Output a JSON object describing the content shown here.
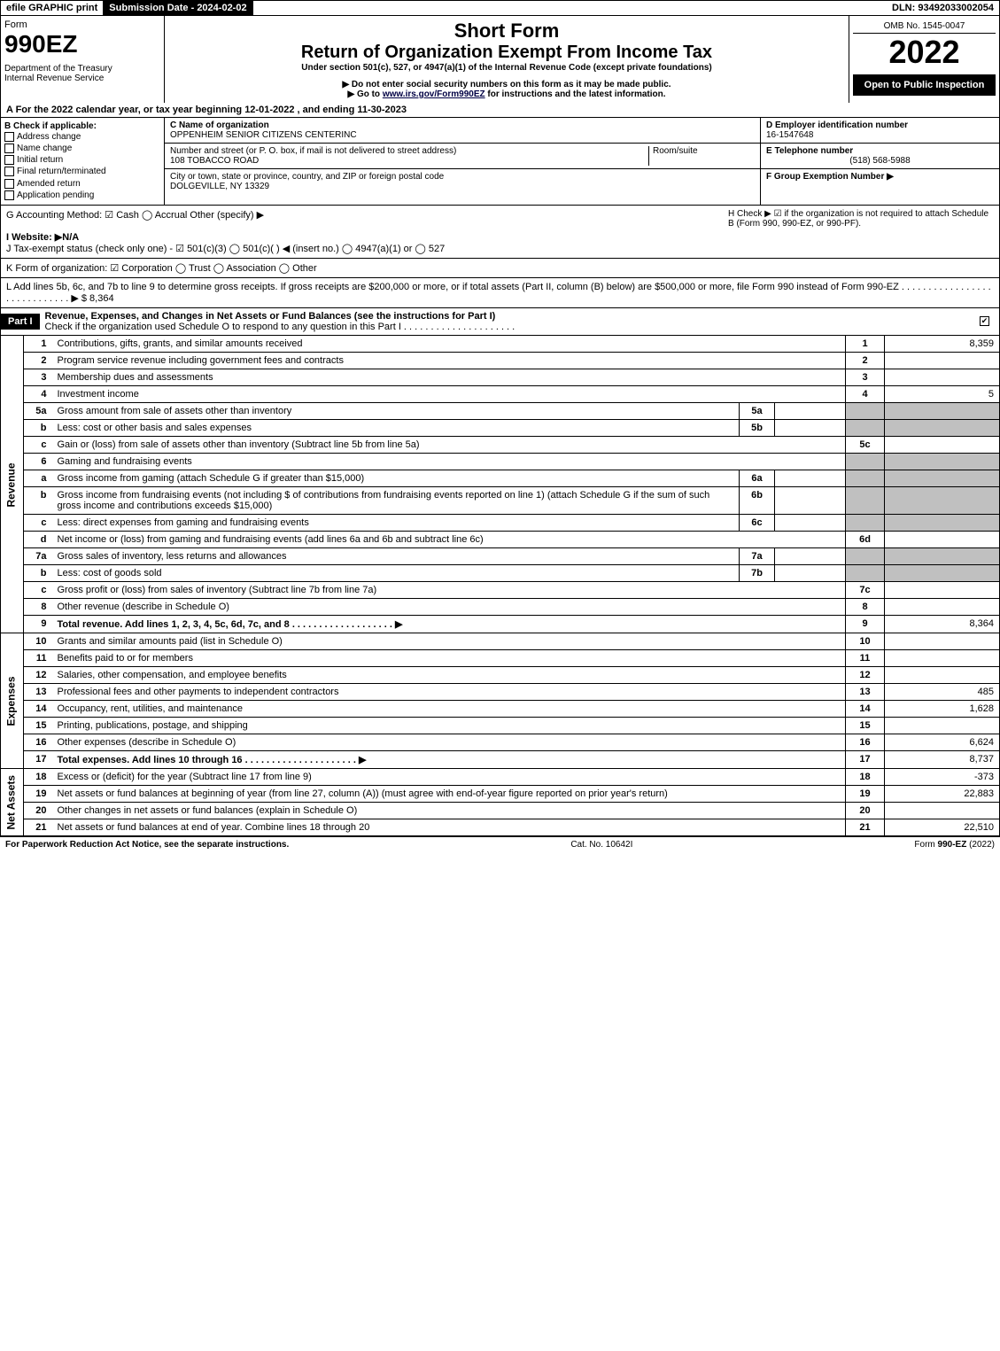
{
  "top": {
    "efile": "efile GRAPHIC print",
    "subdate": "Submission Date - 2024-02-02",
    "dln": "DLN: 93492033002054"
  },
  "header": {
    "form_word": "Form",
    "form_num": "990EZ",
    "dept": "Department of the Treasury\nInternal Revenue Service",
    "short": "Short Form",
    "title": "Return of Organization Exempt From Income Tax",
    "sub": "Under section 501(c), 527, or 4947(a)(1) of the Internal Revenue Code (except private foundations)",
    "warn": "▶ Do not enter social security numbers on this form as it may be made public.",
    "go": "▶ Go to www.irs.gov/Form990EZ for instructions and the latest information.",
    "omb": "OMB No. 1545-0047",
    "year": "2022",
    "open": "Open to Public Inspection"
  },
  "A": "A  For the 2022 calendar year, or tax year beginning 12-01-2022 , and ending 11-30-2023",
  "B": {
    "title": "B  Check if applicable:",
    "items": [
      "Address change",
      "Name change",
      "Initial return",
      "Final return/terminated",
      "Amended return",
      "Application pending"
    ]
  },
  "C": {
    "name_lbl": "C Name of organization",
    "name": "OPPENHEIM SENIOR CITIZENS CENTERINC",
    "street_lbl": "Number and street (or P. O. box, if mail is not delivered to street address)",
    "street": "108 TOBACCO ROAD",
    "room_lbl": "Room/suite",
    "city_lbl": "City or town, state or province, country, and ZIP or foreign postal code",
    "city": "DOLGEVILLE, NY  13329"
  },
  "D": {
    "lbl": "D Employer identification number",
    "val": "16-1547648"
  },
  "E": {
    "lbl": "E Telephone number",
    "val": "(518) 568-5988"
  },
  "F": {
    "lbl": "F Group Exemption Number  ▶"
  },
  "G": "G Accounting Method:  ☑ Cash  ◯ Accrual   Other (specify) ▶",
  "H": "H   Check ▶ ☑ if the organization is not required to attach Schedule B (Form 990, 990-EZ, or 990-PF).",
  "I": "I Website: ▶N/A",
  "J": "J Tax-exempt status (check only one) - ☑ 501(c)(3) ◯ 501(c)(  ) ◀ (insert no.) ◯ 4947(a)(1) or ◯ 527",
  "K": "K Form of organization:  ☑ Corporation  ◯ Trust  ◯ Association  ◯ Other",
  "L": "L Add lines 5b, 6c, and 7b to line 9 to determine gross receipts. If gross receipts are $200,000 or more, or if total assets (Part II, column (B) below) are $500,000 or more, file Form 990 instead of Form 990-EZ . . . . . . . . . . . . . . . . . . . . . . . . . . . . . ▶ $ 8,364",
  "part1": {
    "label": "Part I",
    "title": "Revenue, Expenses, and Changes in Net Assets or Fund Balances (see the instructions for Part I)",
    "sub": "Check if the organization used Schedule O to respond to any question in this Part I . . . . . . . . . . . . . . . . . . . . .",
    "checked": true
  },
  "sides": {
    "rev": "Revenue",
    "exp": "Expenses",
    "net": "Net Assets"
  },
  "lines": [
    {
      "n": "1",
      "t": "Contributions, gifts, grants, and similar amounts received",
      "box": "1",
      "val": "8,359"
    },
    {
      "n": "2",
      "t": "Program service revenue including government fees and contracts",
      "box": "2",
      "val": ""
    },
    {
      "n": "3",
      "t": "Membership dues and assessments",
      "box": "3",
      "val": ""
    },
    {
      "n": "4",
      "t": "Investment income",
      "box": "4",
      "val": "5"
    },
    {
      "n": "5a",
      "t": "Gross amount from sale of assets other than inventory",
      "sub": "5a",
      "grey": true
    },
    {
      "n": "b",
      "t": "Less: cost or other basis and sales expenses",
      "sub": "5b",
      "grey": true
    },
    {
      "n": "c",
      "t": "Gain or (loss) from sale of assets other than inventory (Subtract line 5b from line 5a)",
      "box": "5c",
      "val": ""
    },
    {
      "n": "6",
      "t": "Gaming and fundraising events",
      "greybox": true
    },
    {
      "n": "a",
      "t": "Gross income from gaming (attach Schedule G if greater than $15,000)",
      "sub": "6a",
      "grey": true
    },
    {
      "n": "b",
      "t": "Gross income from fundraising events (not including $                    of contributions from fundraising events reported on line 1) (attach Schedule G if the sum of such gross income and contributions exceeds $15,000)",
      "sub": "6b",
      "grey": true
    },
    {
      "n": "c",
      "t": "Less: direct expenses from gaming and fundraising events",
      "sub": "6c",
      "grey": true
    },
    {
      "n": "d",
      "t": "Net income or (loss) from gaming and fundraising events (add lines 6a and 6b and subtract line 6c)",
      "box": "6d",
      "val": ""
    },
    {
      "n": "7a",
      "t": "Gross sales of inventory, less returns and allowances",
      "sub": "7a",
      "grey": true
    },
    {
      "n": "b",
      "t": "Less: cost of goods sold",
      "sub": "7b",
      "grey": true
    },
    {
      "n": "c",
      "t": "Gross profit or (loss) from sales of inventory (Subtract line 7b from line 7a)",
      "box": "7c",
      "val": ""
    },
    {
      "n": "8",
      "t": "Other revenue (describe in Schedule O)",
      "box": "8",
      "val": ""
    },
    {
      "n": "9",
      "t": "Total revenue. Add lines 1, 2, 3, 4, 5c, 6d, 7c, and 8   . . . . . . . . . . . . . . . . . . . ▶",
      "box": "9",
      "val": "8,364",
      "bold": true
    }
  ],
  "exp_lines": [
    {
      "n": "10",
      "t": "Grants and similar amounts paid (list in Schedule O)",
      "box": "10",
      "val": ""
    },
    {
      "n": "11",
      "t": "Benefits paid to or for members",
      "box": "11",
      "val": ""
    },
    {
      "n": "12",
      "t": "Salaries, other compensation, and employee benefits",
      "box": "12",
      "val": ""
    },
    {
      "n": "13",
      "t": "Professional fees and other payments to independent contractors",
      "box": "13",
      "val": "485"
    },
    {
      "n": "14",
      "t": "Occupancy, rent, utilities, and maintenance",
      "box": "14",
      "val": "1,628"
    },
    {
      "n": "15",
      "t": "Printing, publications, postage, and shipping",
      "box": "15",
      "val": ""
    },
    {
      "n": "16",
      "t": "Other expenses (describe in Schedule O)",
      "box": "16",
      "val": "6,624"
    },
    {
      "n": "17",
      "t": "Total expenses. Add lines 10 through 16   . . . . . . . . . . . . . . . . . . . . . ▶",
      "box": "17",
      "val": "8,737",
      "bold": true
    }
  ],
  "net_lines": [
    {
      "n": "18",
      "t": "Excess or (deficit) for the year (Subtract line 17 from line 9)",
      "box": "18",
      "val": "-373"
    },
    {
      "n": "19",
      "t": "Net assets or fund balances at beginning of year (from line 27, column (A)) (must agree with end-of-year figure reported on prior year's return)",
      "box": "19",
      "val": "22,883"
    },
    {
      "n": "20",
      "t": "Other changes in net assets or fund balances (explain in Schedule O)",
      "box": "20",
      "val": ""
    },
    {
      "n": "21",
      "t": "Net assets or fund balances at end of year. Combine lines 18 through 20",
      "box": "21",
      "val": "22,510"
    }
  ],
  "footer": {
    "left": "For Paperwork Reduction Act Notice, see the separate instructions.",
    "mid": "Cat. No. 10642I",
    "right": "Form 990-EZ (2022)"
  }
}
